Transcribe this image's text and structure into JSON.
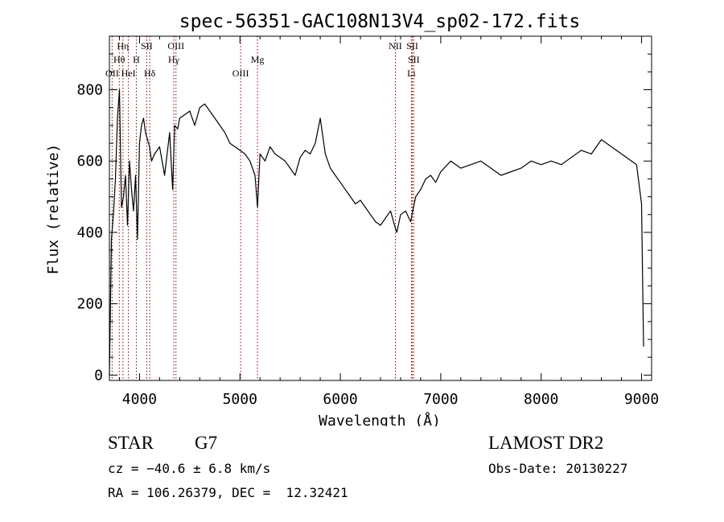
{
  "chart_data": {
    "type": "line",
    "title": "spec-56351-GAC108N13V4_sp02-172.fits",
    "xlabel": "Wavelength (Å)",
    "ylabel": "Flux (relative)",
    "xlim": [
      3700,
      9100
    ],
    "ylim": [
      -15,
      950
    ],
    "x_ticks": [
      4000,
      5000,
      6000,
      7000,
      8000,
      9000
    ],
    "y_ticks": [
      0,
      200,
      400,
      600,
      800
    ],
    "x_tick_labels": [
      "4000",
      "5000",
      "6000",
      "7000",
      "8000",
      "9000"
    ],
    "y_tick_labels": [
      "0",
      "200",
      "400",
      "600",
      "800"
    ],
    "grid": false,
    "line_color": "#000000",
    "marker_color": "#8b0000",
    "series": [
      {
        "x": [
          3700,
          3720,
          3740,
          3760,
          3780,
          3800,
          3820,
          3840,
          3860,
          3880,
          3900,
          3920,
          3940,
          3960,
          3980,
          4000,
          4020,
          4040,
          4060,
          4080,
          4100,
          4120,
          4150,
          4200,
          4250,
          4300,
          4330,
          4350,
          4380,
          4400,
          4450,
          4500,
          4550,
          4600,
          4650,
          4700,
          4750,
          4800,
          4850,
          4900,
          4950,
          5000,
          5050,
          5100,
          5150,
          5175,
          5200,
          5250,
          5300,
          5350,
          5400,
          5450,
          5500,
          5550,
          5600,
          5650,
          5700,
          5750,
          5800,
          5850,
          5900,
          5950,
          6000,
          6050,
          6100,
          6150,
          6200,
          6250,
          6300,
          6350,
          6400,
          6450,
          6500,
          6550,
          6563,
          6600,
          6650,
          6700,
          6750,
          6800,
          6850,
          6900,
          6950,
          7000,
          7100,
          7200,
          7300,
          7400,
          7500,
          7600,
          7700,
          7800,
          7900,
          8000,
          8100,
          8200,
          8300,
          8400,
          8500,
          8600,
          8700,
          8800,
          8900,
          8950,
          9000,
          9020
        ],
        "y": [
          0,
          380,
          450,
          550,
          720,
          800,
          470,
          500,
          560,
          420,
          600,
          520,
          460,
          560,
          380,
          650,
          700,
          720,
          680,
          660,
          640,
          600,
          620,
          640,
          560,
          680,
          520,
          700,
          690,
          720,
          730,
          740,
          700,
          750,
          760,
          740,
          720,
          700,
          680,
          650,
          640,
          630,
          620,
          600,
          560,
          470,
          620,
          600,
          640,
          620,
          610,
          600,
          580,
          560,
          610,
          630,
          620,
          650,
          720,
          620,
          580,
          560,
          540,
          520,
          500,
          480,
          490,
          470,
          450,
          430,
          420,
          440,
          460,
          410,
          400,
          450,
          460,
          430,
          500,
          520,
          550,
          560,
          540,
          570,
          600,
          580,
          590,
          600,
          580,
          560,
          570,
          580,
          600,
          590,
          600,
          590,
          610,
          630,
          620,
          660,
          640,
          620,
          600,
          590,
          480,
          80
        ]
      }
    ],
    "line_markers": [
      {
        "label": "OII",
        "x": 3727,
        "row": 3
      },
      {
        "label": "Hθ",
        "x": 3798,
        "row": 2
      },
      {
        "label": "Hη",
        "x": 3835,
        "row": 1
      },
      {
        "label": "HeI",
        "x": 3889,
        "row": 3
      },
      {
        "label": "H",
        "x": 3968,
        "row": 2
      },
      {
        "label": "SII",
        "x": 4072,
        "row": 1
      },
      {
        "label": "Hδ",
        "x": 4102,
        "row": 3
      },
      {
        "label": "OIII",
        "x": 4363,
        "row": 1
      },
      {
        "label": "Hγ",
        "x": 4341,
        "row": 2
      },
      {
        "label": "OIII",
        "x": 5007,
        "row": 3
      },
      {
        "label": "Mg",
        "x": 5175,
        "row": 2
      },
      {
        "label": "NII",
        "x": 6548,
        "row": 1
      },
      {
        "label": "SII",
        "x": 6717,
        "row": 1
      },
      {
        "label": "SII",
        "x": 6731,
        "row": 2
      },
      {
        "label": "Li",
        "x": 6708,
        "row": 3
      }
    ]
  },
  "info": {
    "class_label": "STAR",
    "subclass_label": "G7",
    "cz_text": "cz = −40.6 ± 6.8 km/s",
    "coords_text": "RA = 106.26379, DEC =  12.32421",
    "survey_label": "LAMOST DR2",
    "obs_date_text": "Obs-Date: 20130227"
  }
}
